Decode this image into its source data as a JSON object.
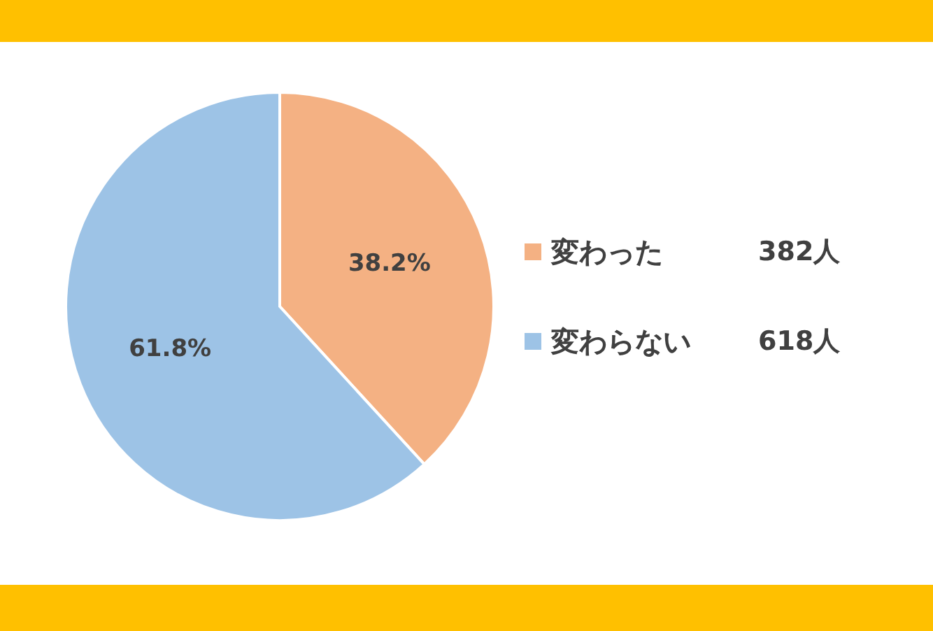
{
  "chart_data": {
    "type": "pie",
    "categories": [
      "変わった",
      "変わらない"
    ],
    "values": [
      38.2,
      61.8
    ],
    "colors": [
      "#f4b183",
      "#9dc3e6"
    ],
    "value_labels": [
      "38.2%",
      "61.8%"
    ],
    "legend": "right",
    "annotations": [
      "382人",
      "618人"
    ]
  }
}
